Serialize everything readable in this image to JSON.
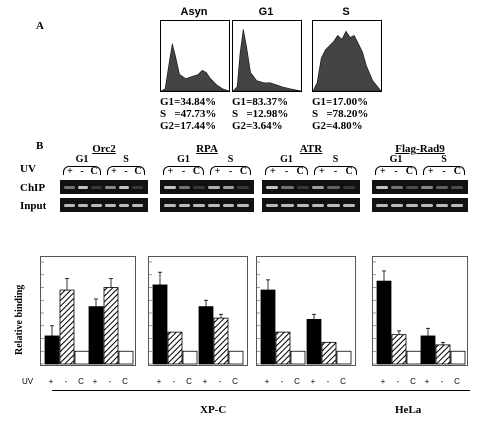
{
  "panel_a": {
    "label": "A",
    "flow": [
      {
        "title": "Asyn",
        "g1": "G1=34.84%",
        "s": "S   =47.73%",
        "g2": "G2=17.44%"
      },
      {
        "title": "G1",
        "g1": "G1=83.37%",
        "s": "S   =12.98%",
        "g2": "G2=3.64%"
      },
      {
        "title": "S",
        "g1": "G1=17.00%",
        "s": "S   =78.20%",
        "g2": "G2=4.80%"
      }
    ]
  },
  "panel_b": {
    "label": "B",
    "row_labels": {
      "uv": "UV",
      "chip": "ChIP",
      "input": "Input"
    },
    "proteins": [
      "Orc2",
      "RPA",
      "ATR",
      "Flag-Rad9"
    ],
    "phase_labels": [
      "G1",
      "S"
    ],
    "lane_signs": [
      "+",
      "-",
      "C"
    ],
    "y_label": "Relative binding",
    "cells": {
      "xpc": "XP-C",
      "hela": "HeLa"
    },
    "bottom_uv": "UV"
  },
  "chart_data": [
    {
      "type": "bar",
      "title": "Orc2",
      "categories": [
        "G1 +",
        "G1 -",
        "G1 C",
        "S +",
        "S -",
        "S C"
      ],
      "values": [
        2.2,
        5.8,
        1.0,
        4.5,
        6.0,
        1.0
      ],
      "errors": [
        0.8,
        0.9,
        0,
        0.6,
        0.7,
        0
      ],
      "ylim": [
        0,
        8
      ],
      "ylabel": "Relative binding"
    },
    {
      "type": "bar",
      "title": "RPA",
      "categories": [
        "G1 +",
        "G1 -",
        "G1 C",
        "S +",
        "S -",
        "S C"
      ],
      "values": [
        6.2,
        2.5,
        1.0,
        4.5,
        3.6,
        1.0
      ],
      "errors": [
        1.0,
        0,
        0,
        0.5,
        0.3,
        0
      ],
      "ylim": [
        0,
        8
      ]
    },
    {
      "type": "bar",
      "title": "ATR",
      "categories": [
        "G1 +",
        "G1 -",
        "G1 C",
        "S +",
        "S -",
        "S C"
      ],
      "values": [
        5.8,
        2.5,
        1.0,
        3.5,
        1.7,
        1.0
      ],
      "errors": [
        0.8,
        0,
        0,
        0.4,
        0,
        0
      ],
      "ylim": [
        0,
        8
      ]
    },
    {
      "type": "bar",
      "title": "Flag-Rad9",
      "categories": [
        "G1 +",
        "G1 -",
        "G1 C",
        "S +",
        "S -",
        "S C"
      ],
      "values": [
        6.5,
        2.3,
        1.0,
        2.2,
        1.5,
        1.0
      ],
      "errors": [
        0.8,
        0.3,
        0,
        0.6,
        0.2,
        0
      ],
      "ylim": [
        0,
        8
      ]
    }
  ]
}
